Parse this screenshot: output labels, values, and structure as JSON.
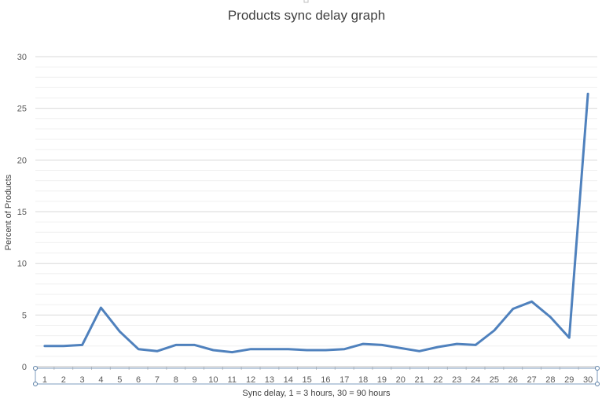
{
  "chart_data": {
    "type": "line",
    "title": "Products sync delay graph",
    "xlabel": "Sync delay, 1 = 3 hours, 30 = 90 hours",
    "ylabel": "Percent of Products",
    "categories": [
      "1",
      "2",
      "3",
      "4",
      "5",
      "6",
      "7",
      "8",
      "9",
      "10",
      "11",
      "12",
      "13",
      "14",
      "15",
      "16",
      "17",
      "18",
      "19",
      "20",
      "21",
      "22",
      "23",
      "24",
      "25",
      "26",
      "27",
      "28",
      "29",
      "30"
    ],
    "series": [
      {
        "name": "",
        "values": [
          2.0,
          2.0,
          2.1,
          5.7,
          3.4,
          1.7,
          1.5,
          2.1,
          2.1,
          1.6,
          1.4,
          1.7,
          1.7,
          1.7,
          1.6,
          1.6,
          1.7,
          2.2,
          2.1,
          1.8,
          1.5,
          1.9,
          2.2,
          2.1,
          3.5,
          5.6,
          6.3,
          4.8,
          2.8,
          26.4
        ]
      }
    ],
    "ylim": [
      0,
      30
    ],
    "yticks": [
      0,
      5,
      10,
      15,
      20,
      25,
      30
    ],
    "grid": true,
    "legend": "none",
    "line_color": "#4f81bd",
    "grid_color": "#d9d9d9"
  }
}
